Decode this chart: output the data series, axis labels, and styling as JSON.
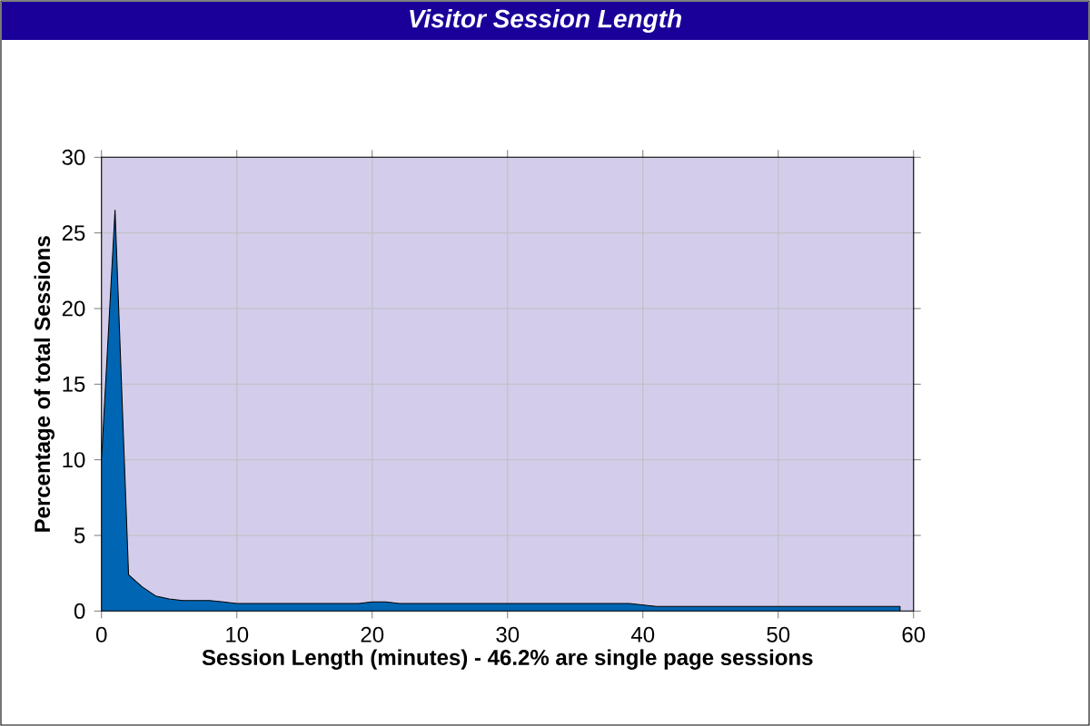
{
  "chart_data": {
    "type": "area",
    "title": "Visitor Session Length",
    "xlabel": "Session Length (minutes) - 46.2% are single page sessions",
    "ylabel": "Percentage of total Sessions",
    "x": [
      0,
      1,
      2,
      3,
      4,
      5,
      6,
      7,
      8,
      9,
      10,
      11,
      12,
      13,
      14,
      15,
      16,
      17,
      18,
      19,
      20,
      21,
      22,
      23,
      24,
      25,
      26,
      27,
      28,
      29,
      30,
      31,
      32,
      33,
      34,
      35,
      36,
      37,
      38,
      39,
      40,
      41,
      42,
      43,
      44,
      45,
      46,
      47,
      48,
      49,
      50,
      51,
      52,
      53,
      54,
      55,
      56,
      57,
      58,
      59
    ],
    "values": [
      10,
      26.5,
      2.4,
      1.6,
      1.0,
      0.8,
      0.7,
      0.7,
      0.7,
      0.6,
      0.5,
      0.5,
      0.5,
      0.5,
      0.5,
      0.5,
      0.5,
      0.5,
      0.5,
      0.5,
      0.6,
      0.6,
      0.5,
      0.5,
      0.5,
      0.5,
      0.5,
      0.5,
      0.5,
      0.5,
      0.5,
      0.5,
      0.5,
      0.5,
      0.5,
      0.5,
      0.5,
      0.5,
      0.5,
      0.5,
      0.4,
      0.3,
      0.3,
      0.3,
      0.3,
      0.3,
      0.3,
      0.3,
      0.3,
      0.3,
      0.3,
      0.3,
      0.3,
      0.3,
      0.3,
      0.3,
      0.3,
      0.3,
      0.3,
      0.3
    ],
    "color": "#0066b3",
    "xlim": [
      0,
      60
    ],
    "xticks": [
      0,
      10,
      20,
      30,
      40,
      50,
      60
    ],
    "ylim": [
      0,
      30
    ],
    "yticks": [
      0,
      5,
      10,
      15,
      20,
      25,
      30
    ],
    "grid": true,
    "marker": "none"
  }
}
